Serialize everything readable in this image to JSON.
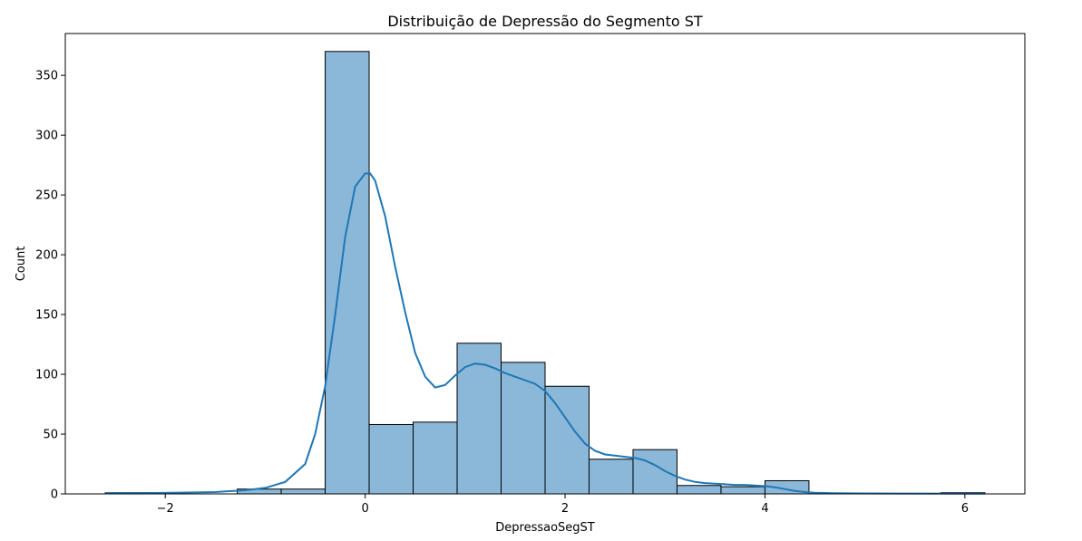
{
  "chart_data": {
    "type": "bar",
    "title": "Distribuição de Depressão do Segmento ST",
    "xlabel": "DepressaoSegST",
    "ylabel": "Count",
    "xlim": [
      -3.0,
      6.6
    ],
    "ylim": [
      0,
      385
    ],
    "x_ticks": [
      -2,
      0,
      2,
      4,
      6
    ],
    "x_tick_labels": [
      "−2",
      "0",
      "2",
      "4",
      "6"
    ],
    "y_ticks": [
      0,
      50,
      100,
      150,
      200,
      250,
      300,
      350
    ],
    "y_tick_labels": [
      "0",
      "50",
      "100",
      "150",
      "200",
      "250",
      "300",
      "350"
    ],
    "grid": false,
    "bins": [
      {
        "x0": -2.6,
        "x1": -2.16,
        "count": 1
      },
      {
        "x0": -2.16,
        "x1": -1.72,
        "count": 0
      },
      {
        "x0": -1.72,
        "x1": -1.28,
        "count": 0
      },
      {
        "x0": -1.28,
        "x1": -0.84,
        "count": 4
      },
      {
        "x0": -0.84,
        "x1": -0.4,
        "count": 4
      },
      {
        "x0": -0.4,
        "x1": 0.04,
        "count": 370
      },
      {
        "x0": 0.04,
        "x1": 0.48,
        "count": 58
      },
      {
        "x0": 0.48,
        "x1": 0.92,
        "count": 60
      },
      {
        "x0": 0.92,
        "x1": 1.36,
        "count": 126
      },
      {
        "x0": 1.36,
        "x1": 1.8,
        "count": 110
      },
      {
        "x0": 1.8,
        "x1": 2.24,
        "count": 90
      },
      {
        "x0": 2.24,
        "x1": 2.68,
        "count": 29
      },
      {
        "x0": 2.68,
        "x1": 3.12,
        "count": 37
      },
      {
        "x0": 3.12,
        "x1": 3.56,
        "count": 7
      },
      {
        "x0": 3.56,
        "x1": 4.0,
        "count": 6
      },
      {
        "x0": 4.0,
        "x1": 4.44,
        "count": 11
      },
      {
        "x0": 4.44,
        "x1": 4.88,
        "count": 0
      },
      {
        "x0": 4.88,
        "x1": 5.32,
        "count": 0
      },
      {
        "x0": 5.32,
        "x1": 5.76,
        "count": 0
      },
      {
        "x0": 5.76,
        "x1": 6.2,
        "count": 1
      }
    ],
    "kde": {
      "x": [
        -2.6,
        -2.0,
        -1.5,
        -1.2,
        -1.0,
        -0.8,
        -0.6,
        -0.5,
        -0.4,
        -0.3,
        -0.2,
        -0.1,
        0.0,
        0.05,
        0.1,
        0.2,
        0.3,
        0.4,
        0.5,
        0.6,
        0.7,
        0.8,
        0.9,
        1.0,
        1.1,
        1.2,
        1.3,
        1.4,
        1.5,
        1.6,
        1.7,
        1.8,
        1.9,
        2.0,
        2.1,
        2.2,
        2.3,
        2.4,
        2.5,
        2.6,
        2.7,
        2.8,
        2.9,
        3.0,
        3.1,
        3.2,
        3.3,
        3.4,
        3.5,
        3.6,
        3.7,
        3.8,
        3.9,
        4.0,
        4.1,
        4.2,
        4.3,
        4.4,
        4.5,
        4.7,
        5.0,
        5.5,
        6.2
      ],
      "y": [
        0.5,
        0.8,
        1.5,
        3,
        5,
        10,
        25,
        50,
        90,
        150,
        215,
        257,
        268,
        268,
        262,
        232,
        190,
        152,
        118,
        98,
        89,
        91,
        99,
        106,
        109,
        108,
        105,
        101,
        98,
        95,
        92,
        86,
        76,
        64,
        52,
        42,
        36,
        33,
        32,
        31,
        30,
        28,
        24,
        19,
        15,
        12,
        10,
        9,
        8.5,
        8,
        7.5,
        7.5,
        7,
        6.5,
        5.5,
        4,
        2.5,
        1.5,
        1,
        0.6,
        0.4,
        0.3,
        0.2
      ]
    },
    "colors": {
      "bar_fill": "#8bb8d9",
      "bar_edge": "#000000",
      "kde_line": "#1f77b4"
    }
  }
}
